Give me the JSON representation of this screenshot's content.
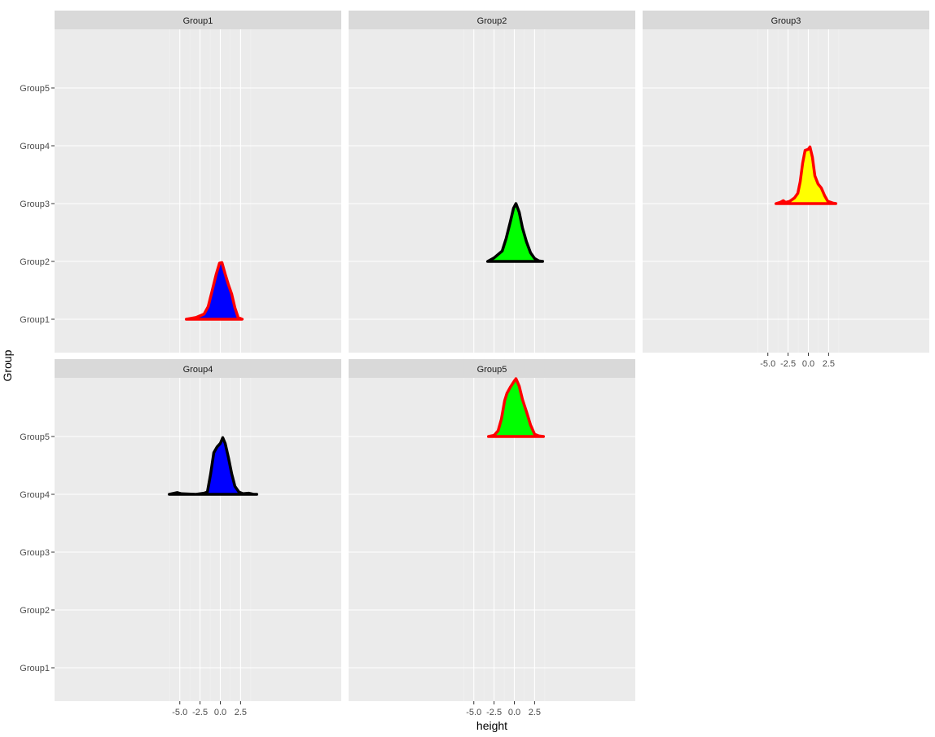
{
  "chart_data": {
    "type": "area",
    "subtype": "faceted ridgeline density",
    "xlabel": "height",
    "ylabel": "Group",
    "xlim": [
      -6.5,
      4.9
    ],
    "x_ticks": [
      "-5.0",
      "-2.5",
      "0.0",
      "2.5"
    ],
    "x_tick_values": [
      -5,
      -2.5,
      0,
      2.5
    ],
    "y_categories": [
      "Group1",
      "Group2",
      "Group3",
      "Group4",
      "Group5"
    ],
    "grid": true,
    "facets": [
      {
        "title": "Group1",
        "baseline": "Group1",
        "fill": "#0000ff",
        "outline": "#ff0000",
        "curve": [
          [
            -4.2,
            0
          ],
          [
            -3.0,
            0.03
          ],
          [
            -2.0,
            0.09
          ],
          [
            -1.5,
            0.22
          ],
          [
            -1.0,
            0.5
          ],
          [
            -0.5,
            0.78
          ],
          [
            -0.1,
            0.97
          ],
          [
            0.2,
            0.98
          ],
          [
            0.6,
            0.78
          ],
          [
            1.0,
            0.6
          ],
          [
            1.4,
            0.44
          ],
          [
            1.8,
            0.2
          ],
          [
            2.2,
            0.03
          ],
          [
            2.7,
            0
          ]
        ]
      },
      {
        "title": "Group2",
        "baseline": "Group2",
        "fill": "#00ff00",
        "outline": "#000000",
        "curve": [
          [
            -3.3,
            0
          ],
          [
            -2.5,
            0.06
          ],
          [
            -1.5,
            0.18
          ],
          [
            -1.0,
            0.4
          ],
          [
            -0.5,
            0.68
          ],
          [
            -0.1,
            0.92
          ],
          [
            0.2,
            1.0
          ],
          [
            0.6,
            0.85
          ],
          [
            1.0,
            0.58
          ],
          [
            1.5,
            0.34
          ],
          [
            2.0,
            0.15
          ],
          [
            2.5,
            0.05
          ],
          [
            3.0,
            0.01
          ],
          [
            3.5,
            0
          ]
        ]
      },
      {
        "title": "Group3",
        "baseline": "Group3",
        "fill": "#ffff00",
        "outline": "#ff0000",
        "curve": [
          [
            -4.0,
            0
          ],
          [
            -3.5,
            0.02
          ],
          [
            -3.1,
            0.05
          ],
          [
            -2.8,
            0.02
          ],
          [
            -2.3,
            0.04
          ],
          [
            -1.7,
            0.1
          ],
          [
            -1.3,
            0.18
          ],
          [
            -1.0,
            0.38
          ],
          [
            -0.7,
            0.7
          ],
          [
            -0.4,
            0.92
          ],
          [
            0.0,
            0.94
          ],
          [
            0.2,
            0.98
          ],
          [
            0.5,
            0.8
          ],
          [
            0.8,
            0.48
          ],
          [
            1.2,
            0.34
          ],
          [
            1.6,
            0.27
          ],
          [
            2.0,
            0.14
          ],
          [
            2.4,
            0.04
          ],
          [
            3.0,
            0.01
          ],
          [
            3.4,
            0
          ]
        ]
      },
      {
        "title": "Group4",
        "baseline": "Group4",
        "fill": "#0000ff",
        "outline": "#000000",
        "curve": [
          [
            -6.3,
            0
          ],
          [
            -5.3,
            0.03
          ],
          [
            -4.8,
            0.01
          ],
          [
            -3.0,
            0.0
          ],
          [
            -2.0,
            0.02
          ],
          [
            -1.6,
            0.04
          ],
          [
            -1.2,
            0.35
          ],
          [
            -0.8,
            0.72
          ],
          [
            -0.4,
            0.82
          ],
          [
            0.0,
            0.88
          ],
          [
            0.3,
            0.98
          ],
          [
            0.6,
            0.88
          ],
          [
            1.0,
            0.64
          ],
          [
            1.4,
            0.36
          ],
          [
            1.8,
            0.14
          ],
          [
            2.3,
            0.04
          ],
          [
            2.8,
            0.01
          ],
          [
            3.5,
            0.02
          ],
          [
            4.1,
            0
          ],
          [
            4.5,
            0
          ]
        ]
      },
      {
        "title": "Group5",
        "baseline": "Group5",
        "fill": "#00ff00",
        "outline": "#ff0000",
        "curve": [
          [
            -3.2,
            0
          ],
          [
            -2.5,
            0.02
          ],
          [
            -2.0,
            0.1
          ],
          [
            -1.6,
            0.3
          ],
          [
            -1.2,
            0.62
          ],
          [
            -0.9,
            0.75
          ],
          [
            -0.5,
            0.85
          ],
          [
            0.0,
            0.96
          ],
          [
            0.2,
            1.0
          ],
          [
            0.6,
            0.87
          ],
          [
            1.0,
            0.64
          ],
          [
            1.5,
            0.43
          ],
          [
            2.0,
            0.2
          ],
          [
            2.5,
            0.04
          ],
          [
            3.0,
            0.01
          ],
          [
            3.6,
            0
          ]
        ]
      }
    ]
  }
}
